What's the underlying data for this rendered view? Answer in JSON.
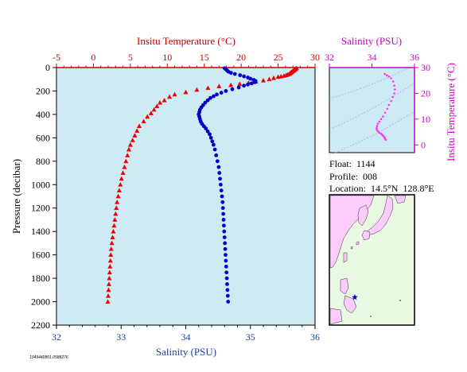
{
  "colors": {
    "plot_bg": "#cdeaf5",
    "temperature": "#ee0000",
    "salinity": "#0000cc",
    "inset_series": "#ff33ff",
    "inset_axis": "#cc00cc",
    "map_sea": "#ffffff",
    "map_land_bg": "#e8f8e2",
    "map_land": "#ffccff",
    "float_marker": "#0000cc"
  },
  "info": {
    "float": "Float:  1144",
    "profile": "Profile:  008",
    "location": "Location:  14.5°N  128.8°E"
  },
  "footer_code": "1049440801.0588276",
  "map": {
    "marker_icon": "star-icon"
  },
  "chart_data": [
    {
      "type": "scatter",
      "title": "",
      "xlabel_top": "Insitu Temperature (°C)",
      "xlabel_bottom": "Salinity (PSU)",
      "ylabel": "Pressure (decibar)",
      "y_reversed": true,
      "ylim": [
        0,
        2200
      ],
      "temp_xlim": [
        -5,
        30
      ],
      "sal_xlim": [
        32,
        36
      ],
      "temp_ticks": [
        "-5",
        "0",
        "5",
        "10",
        "15",
        "20",
        "25",
        "30"
      ],
      "sal_ticks": [
        "32",
        "33",
        "34",
        "35",
        "36"
      ],
      "y_ticks": [
        "0",
        "200",
        "400",
        "600",
        "800",
        "1000",
        "1200",
        "1400",
        "1600",
        "1800",
        "2000",
        "2200"
      ],
      "grid": false,
      "series": [
        {
          "key": "temperature",
          "marker": "triangle",
          "points": [
            [
              27.5,
              5
            ],
            [
              27.4,
              10
            ],
            [
              27.3,
              15
            ],
            [
              27.2,
              20
            ],
            [
              27.1,
              25
            ],
            [
              27.0,
              30
            ],
            [
              26.9,
              35
            ],
            [
              26.8,
              40
            ],
            [
              26.7,
              45
            ],
            [
              26.6,
              50
            ],
            [
              26.5,
              55
            ],
            [
              26.3,
              60
            ],
            [
              26.1,
              65
            ],
            [
              25.8,
              70
            ],
            [
              25.4,
              75
            ],
            [
              25.0,
              80
            ],
            [
              24.4,
              90
            ],
            [
              23.8,
              100
            ],
            [
              23.0,
              110
            ],
            [
              22.0,
              120
            ],
            [
              21.0,
              130
            ],
            [
              19.8,
              140
            ],
            [
              18.6,
              150
            ],
            [
              17.0,
              160
            ],
            [
              15.5,
              175
            ],
            [
              14.0,
              190
            ],
            [
              12.5,
              210
            ],
            [
              11.0,
              230
            ],
            [
              10.3,
              250
            ],
            [
              9.6,
              280
            ],
            [
              9.0,
              300
            ],
            [
              8.6,
              330
            ],
            [
              8.2,
              360
            ],
            [
              7.8,
              390
            ],
            [
              7.3,
              420
            ],
            [
              6.8,
              460
            ],
            [
              6.2,
              500
            ],
            [
              5.9,
              540
            ],
            [
              5.6,
              580
            ],
            [
              5.3,
              620
            ],
            [
              5.0,
              660
            ],
            [
              4.8,
              700
            ],
            [
              4.6,
              750
            ],
            [
              4.4,
              800
            ],
            [
              4.2,
              850
            ],
            [
              4.0,
              900
            ],
            [
              3.8,
              950
            ],
            [
              3.65,
              1000
            ],
            [
              3.5,
              1050
            ],
            [
              3.35,
              1100
            ],
            [
              3.2,
              1150
            ],
            [
              3.1,
              1200
            ],
            [
              3.0,
              1250
            ],
            [
              2.9,
              1300
            ],
            [
              2.8,
              1350
            ],
            [
              2.7,
              1400
            ],
            [
              2.6,
              1450
            ],
            [
              2.5,
              1500
            ],
            [
              2.4,
              1550
            ],
            [
              2.35,
              1600
            ],
            [
              2.3,
              1650
            ],
            [
              2.25,
              1700
            ],
            [
              2.2,
              1750
            ],
            [
              2.15,
              1800
            ],
            [
              2.1,
              1850
            ],
            [
              2.05,
              1900
            ],
            [
              2.0,
              1950
            ],
            [
              1.95,
              2000
            ]
          ]
        },
        {
          "key": "salinity",
          "marker": "circle",
          "points": [
            [
              34.6,
              5
            ],
            [
              34.62,
              15
            ],
            [
              34.64,
              25
            ],
            [
              34.66,
              35
            ],
            [
              34.7,
              45
            ],
            [
              34.76,
              55
            ],
            [
              34.84,
              65
            ],
            [
              34.9,
              75
            ],
            [
              34.96,
              85
            ],
            [
              35.0,
              95
            ],
            [
              35.05,
              105
            ],
            [
              35.08,
              115
            ],
            [
              35.07,
              125
            ],
            [
              35.02,
              135
            ],
            [
              34.96,
              145
            ],
            [
              34.9,
              155
            ],
            [
              34.82,
              170
            ],
            [
              34.72,
              185
            ],
            [
              34.62,
              200
            ],
            [
              34.55,
              215
            ],
            [
              34.48,
              230
            ],
            [
              34.43,
              245
            ],
            [
              34.38,
              260
            ],
            [
              34.34,
              280
            ],
            [
              34.3,
              300
            ],
            [
              34.27,
              320
            ],
            [
              34.24,
              340
            ],
            [
              34.22,
              360
            ],
            [
              34.21,
              380
            ],
            [
              34.2,
              400
            ],
            [
              34.21,
              420
            ],
            [
              34.22,
              440
            ],
            [
              34.23,
              460
            ],
            [
              34.25,
              480
            ],
            [
              34.28,
              500
            ],
            [
              34.31,
              520
            ],
            [
              34.34,
              545
            ],
            [
              34.37,
              570
            ],
            [
              34.39,
              600
            ],
            [
              34.41,
              630
            ],
            [
              34.43,
              660
            ],
            [
              34.45,
              700
            ],
            [
              34.47,
              750
            ],
            [
              34.49,
              800
            ],
            [
              34.51,
              850
            ],
            [
              34.52,
              900
            ],
            [
              34.53,
              950
            ],
            [
              34.54,
              1000
            ],
            [
              34.55,
              1050
            ],
            [
              34.56,
              1100
            ],
            [
              34.57,
              1150
            ],
            [
              34.575,
              1200
            ],
            [
              34.58,
              1250
            ],
            [
              34.585,
              1300
            ],
            [
              34.59,
              1350
            ],
            [
              34.595,
              1400
            ],
            [
              34.6,
              1450
            ],
            [
              34.605,
              1500
            ],
            [
              34.61,
              1550
            ],
            [
              34.615,
              1600
            ],
            [
              34.62,
              1650
            ],
            [
              34.625,
              1700
            ],
            [
              34.63,
              1750
            ],
            [
              34.635,
              1800
            ],
            [
              34.64,
              1850
            ],
            [
              34.645,
              1900
            ],
            [
              34.65,
              1950
            ],
            [
              34.655,
              2000
            ]
          ]
        }
      ]
    },
    {
      "type": "scatter",
      "title": "",
      "xlabel": "Salinity (PSU)",
      "ylabel": "Insitu Temperature (°C)",
      "xlim": [
        32,
        36
      ],
      "ylim": [
        -3,
        30
      ],
      "x_ticks": [
        "32",
        "34",
        "36"
      ],
      "y_ticks": [
        "0",
        "10",
        "20",
        "30"
      ],
      "grid": false,
      "series": [
        {
          "key": "ts_diagram",
          "marker": "dot",
          "points": [
            [
              34.6,
              27.5
            ],
            [
              34.7,
              27.0
            ],
            [
              34.8,
              26.5
            ],
            [
              34.9,
              25.8
            ],
            [
              35.0,
              24.6
            ],
            [
              35.05,
              23.0
            ],
            [
              35.08,
              21.5
            ],
            [
              35.05,
              20.0
            ],
            [
              34.98,
              18.6
            ],
            [
              34.9,
              17.0
            ],
            [
              34.8,
              15.5
            ],
            [
              34.72,
              14.0
            ],
            [
              34.62,
              12.5
            ],
            [
              34.52,
              11.0
            ],
            [
              34.43,
              10.0
            ],
            [
              34.35,
              9.0
            ],
            [
              34.28,
              8.2
            ],
            [
              34.24,
              7.3
            ],
            [
              34.22,
              6.5
            ],
            [
              34.23,
              5.9
            ],
            [
              34.28,
              5.3
            ],
            [
              34.34,
              4.8
            ],
            [
              34.41,
              4.4
            ],
            [
              34.47,
              4.0
            ],
            [
              34.52,
              3.6
            ],
            [
              34.56,
              3.2
            ],
            [
              34.59,
              2.8
            ],
            [
              34.62,
              2.4
            ],
            [
              34.65,
              2.0
            ]
          ]
        }
      ]
    }
  ]
}
